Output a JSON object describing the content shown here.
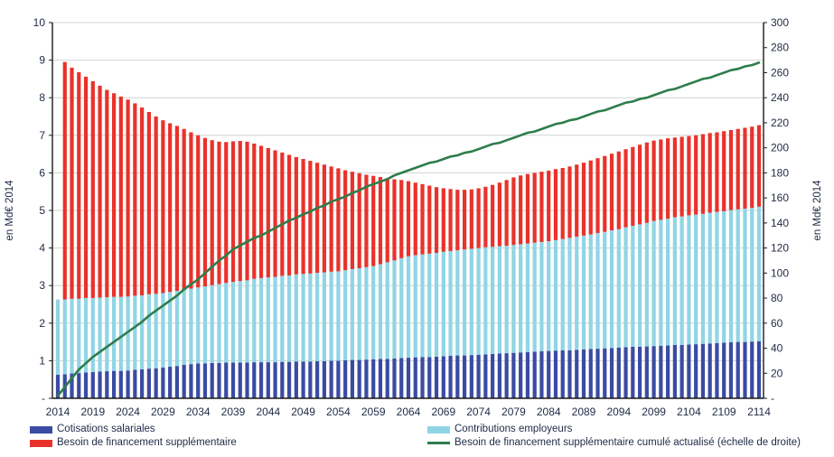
{
  "figure": {
    "left_axis": {
      "title": "en Md€ 2014",
      "min": 0,
      "max": 10,
      "tick_step": 1,
      "tick_labels": [
        "-",
        "1",
        "2",
        "3",
        "4",
        "5",
        "6",
        "7",
        "8",
        "9",
        "10"
      ]
    },
    "right_axis": {
      "title": "en Md€ 2014",
      "min": 0,
      "max": 300,
      "tick_step": 20,
      "tick_labels": [
        "-",
        "20",
        "40",
        "60",
        "80",
        "100",
        "120",
        "140",
        "160",
        "180",
        "200",
        "220",
        "240",
        "260",
        "280",
        "300"
      ]
    },
    "x_axis": {
      "tick_labels": [
        "2014",
        "2019",
        "2024",
        "2029",
        "2034",
        "2039",
        "2044",
        "2049",
        "2054",
        "2059",
        "2064",
        "2069",
        "2074",
        "2079",
        "2084",
        "2089",
        "2094",
        "2099",
        "2104",
        "2109",
        "2114"
      ]
    },
    "colors": {
      "cotisations": "#3B4BA3",
      "contributions": "#90D5E5",
      "besoin": "#E9322B",
      "cumule": "#2E7D4B",
      "tick_text": "#1F2A45",
      "grid": "#D0D4D0",
      "axis": "#1A1A1A"
    }
  },
  "legend": {
    "items": [
      {
        "label": "Cotisations salariales",
        "color": "#3B4BA3",
        "swatch": "bar"
      },
      {
        "label": "Besoin de financement supplémentaire",
        "color": "#E9322B",
        "swatch": "bar"
      },
      {
        "label": "Contributions employeurs",
        "color": "#90D5E5",
        "swatch": "bar"
      },
      {
        "label": "Besoin de financement supplémentaire cumulé actualisé (échelle de droite)",
        "color": "#2E7D4B",
        "swatch": "line"
      }
    ]
  },
  "chart_data": {
    "type": "bar",
    "subtype": "stacked-bars-with-line",
    "title": "",
    "xlabel": "",
    "ylabel_left": "en Md€ 2014",
    "ylabel_right": "en Md€ 2014",
    "ylim_left": [
      0,
      10
    ],
    "ylim_right": [
      0,
      300
    ],
    "grid": true,
    "legend_position": "bottom",
    "x_start": 2014,
    "x_end": 2114,
    "x": [
      2014,
      2015,
      2016,
      2017,
      2018,
      2019,
      2020,
      2021,
      2022,
      2023,
      2024,
      2025,
      2026,
      2027,
      2028,
      2029,
      2030,
      2031,
      2032,
      2033,
      2034,
      2035,
      2036,
      2037,
      2038,
      2039,
      2040,
      2041,
      2042,
      2043,
      2044,
      2045,
      2046,
      2047,
      2048,
      2049,
      2050,
      2051,
      2052,
      2053,
      2054,
      2055,
      2056,
      2057,
      2058,
      2059,
      2060,
      2061,
      2062,
      2063,
      2064,
      2065,
      2066,
      2067,
      2068,
      2069,
      2070,
      2071,
      2072,
      2073,
      2074,
      2075,
      2076,
      2077,
      2078,
      2079,
      2080,
      2081,
      2082,
      2083,
      2084,
      2085,
      2086,
      2087,
      2088,
      2089,
      2090,
      2091,
      2092,
      2093,
      2094,
      2095,
      2096,
      2097,
      2098,
      2099,
      2100,
      2101,
      2102,
      2103,
      2104,
      2105,
      2106,
      2107,
      2108,
      2109,
      2110,
      2111,
      2112,
      2113,
      2114
    ],
    "series": [
      {
        "name": "Cotisations salariales",
        "type": "bar-stacked",
        "axis": "left",
        "color": "#3B4BA3",
        "values": [
          0.63,
          0.64,
          0.66,
          0.67,
          0.69,
          0.7,
          0.71,
          0.72,
          0.73,
          0.73,
          0.74,
          0.76,
          0.77,
          0.79,
          0.8,
          0.82,
          0.84,
          0.86,
          0.89,
          0.91,
          0.93,
          0.93,
          0.94,
          0.94,
          0.95,
          0.95,
          0.95,
          0.95,
          0.96,
          0.96,
          0.96,
          0.96,
          0.97,
          0.97,
          0.98,
          0.98,
          0.98,
          0.99,
          0.99,
          1.0,
          1.0,
          1.01,
          1.02,
          1.02,
          1.03,
          1.04,
          1.05,
          1.05,
          1.06,
          1.07,
          1.08,
          1.09,
          1.1,
          1.1,
          1.11,
          1.12,
          1.13,
          1.14,
          1.14,
          1.15,
          1.16,
          1.17,
          1.18,
          1.19,
          1.2,
          1.21,
          1.22,
          1.23,
          1.24,
          1.25,
          1.26,
          1.27,
          1.28,
          1.28,
          1.29,
          1.3,
          1.31,
          1.32,
          1.33,
          1.34,
          1.35,
          1.36,
          1.37,
          1.37,
          1.38,
          1.39,
          1.4,
          1.41,
          1.42,
          1.42,
          1.43,
          1.44,
          1.45,
          1.46,
          1.47,
          1.48,
          1.49,
          1.5,
          1.5,
          1.51,
          1.52
        ]
      },
      {
        "name": "Contributions employeurs",
        "type": "bar-stacked",
        "axis": "left",
        "color": "#90D5E5",
        "values": [
          2.0,
          1.99,
          1.99,
          1.98,
          1.98,
          1.97,
          1.97,
          1.97,
          1.97,
          1.97,
          1.97,
          1.97,
          1.97,
          1.98,
          1.98,
          1.98,
          1.99,
          2.0,
          2.0,
          2.01,
          2.02,
          2.05,
          2.07,
          2.1,
          2.12,
          2.15,
          2.17,
          2.19,
          2.22,
          2.24,
          2.26,
          2.27,
          2.29,
          2.3,
          2.32,
          2.33,
          2.34,
          2.35,
          2.36,
          2.37,
          2.38,
          2.4,
          2.42,
          2.44,
          2.46,
          2.48,
          2.52,
          2.57,
          2.61,
          2.66,
          2.7,
          2.72,
          2.73,
          2.75,
          2.76,
          2.78,
          2.79,
          2.8,
          2.82,
          2.83,
          2.84,
          2.85,
          2.85,
          2.86,
          2.86,
          2.87,
          2.88,
          2.89,
          2.9,
          2.91,
          2.92,
          2.94,
          2.96,
          2.99,
          3.01,
          3.03,
          3.05,
          3.08,
          3.1,
          3.13,
          3.15,
          3.19,
          3.22,
          3.26,
          3.29,
          3.33,
          3.35,
          3.37,
          3.4,
          3.42,
          3.44,
          3.45,
          3.46,
          3.48,
          3.49,
          3.5,
          3.52,
          3.53,
          3.55,
          3.56,
          3.58
        ]
      },
      {
        "name": "Besoin de financement supplémentaire",
        "type": "bar-stacked",
        "axis": "left",
        "color": "#E9322B",
        "values": [
          0.0,
          6.32,
          6.15,
          6.03,
          5.89,
          5.77,
          5.64,
          5.52,
          5.42,
          5.33,
          5.24,
          5.12,
          5.0,
          4.85,
          4.72,
          4.6,
          4.49,
          4.39,
          4.28,
          4.16,
          4.05,
          3.95,
          3.86,
          3.79,
          3.75,
          3.74,
          3.73,
          3.69,
          3.6,
          3.52,
          3.44,
          3.37,
          3.28,
          3.21,
          3.12,
          3.06,
          3.0,
          2.93,
          2.87,
          2.8,
          2.74,
          2.66,
          2.59,
          2.53,
          2.46,
          2.4,
          2.32,
          2.24,
          2.16,
          2.08,
          2.0,
          1.93,
          1.87,
          1.81,
          1.75,
          1.69,
          1.65,
          1.61,
          1.59,
          1.58,
          1.59,
          1.61,
          1.65,
          1.69,
          1.75,
          1.8,
          1.83,
          1.85,
          1.86,
          1.87,
          1.88,
          1.89,
          1.89,
          1.9,
          1.92,
          1.94,
          1.97,
          1.99,
          2.02,
          2.04,
          2.07,
          2.08,
          2.1,
          2.12,
          2.14,
          2.14,
          2.14,
          2.14,
          2.12,
          2.12,
          2.11,
          2.11,
          2.12,
          2.12,
          2.12,
          2.13,
          2.13,
          2.14,
          2.15,
          2.16,
          2.17
        ]
      },
      {
        "name": "Besoin de financement supplémentaire cumulé actualisé (échelle de droite)",
        "type": "line",
        "axis": "right",
        "color": "#2E7D4B",
        "values": [
          2,
          9,
          16,
          23,
          28,
          33,
          37,
          41,
          45,
          49,
          53,
          57,
          61,
          66,
          70,
          74,
          78,
          82,
          87,
          91,
          95,
          100,
          105,
          110,
          114,
          119,
          122,
          125,
          128,
          130,
          133,
          136,
          139,
          142,
          144,
          147,
          149,
          152,
          154,
          157,
          159,
          161,
          164,
          166,
          169,
          171,
          173,
          175,
          178,
          180,
          182,
          184,
          186,
          188,
          189,
          191,
          193,
          194,
          196,
          197,
          199,
          201,
          203,
          204,
          206,
          208,
          210,
          212,
          213,
          215,
          217,
          219,
          220,
          222,
          223,
          225,
          227,
          229,
          230,
          232,
          234,
          236,
          237,
          239,
          240,
          242,
          244,
          246,
          247,
          249,
          251,
          253,
          255,
          256,
          258,
          260,
          262,
          263,
          265,
          266,
          268
        ]
      }
    ]
  }
}
